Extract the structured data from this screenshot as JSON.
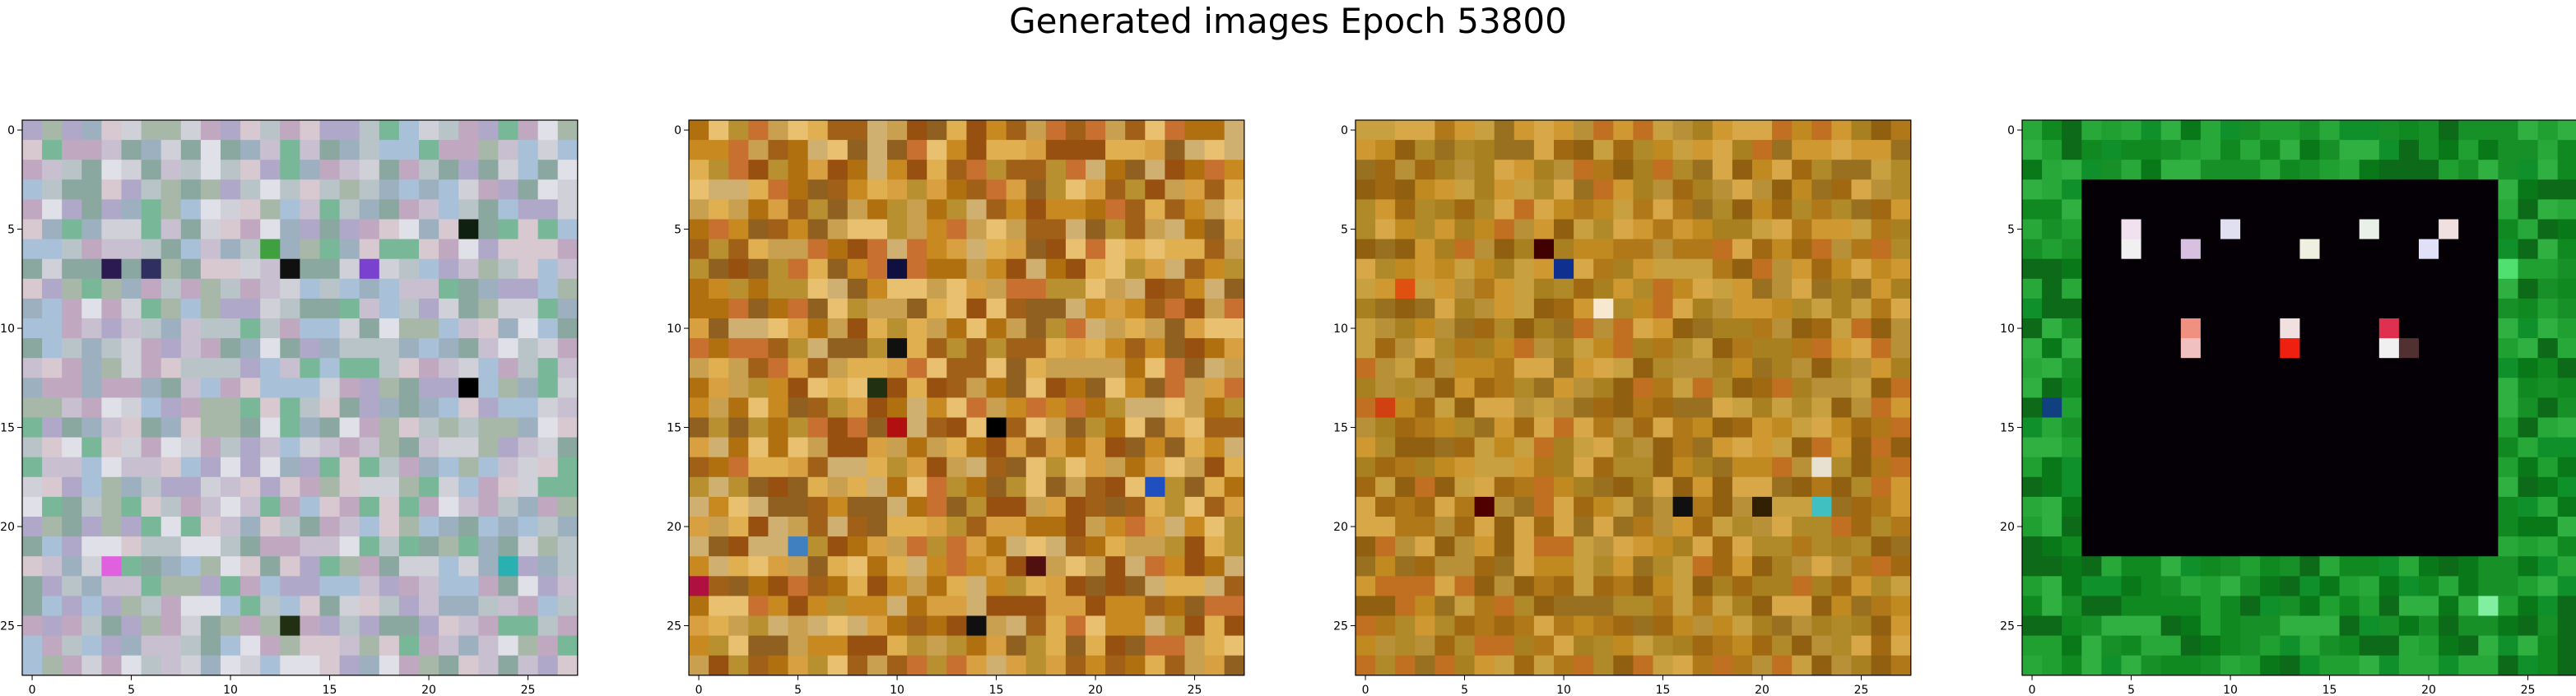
{
  "title": "Generated images Epoch 53800",
  "chart_data": [
    {
      "type": "heatmap",
      "title": "",
      "xlabel": "",
      "ylabel": "",
      "size": 28,
      "xticks": [
        0,
        5,
        10,
        15,
        20,
        25
      ],
      "yticks": [
        0,
        5,
        10,
        15,
        20,
        25
      ],
      "xlim": [
        -0.5,
        27.5
      ],
      "ylim": [
        27.5,
        -0.5
      ],
      "palette": [
        "#b8c4c8",
        "#c8c0d0",
        "#a8b8a8",
        "#d0d0d8",
        "#9cb0c0",
        "#c0a8c0",
        "#e0e0e8",
        "#8aa8a0",
        "#b0a8c8",
        "#d8c8d0",
        "#78b898",
        "#a8c0d8"
      ],
      "hot_pixels": [
        {
          "x": 4,
          "y": 7,
          "color": "#2a1a50"
        },
        {
          "x": 6,
          "y": 7,
          "color": "#303060"
        },
        {
          "x": 13,
          "y": 7,
          "color": "#101010"
        },
        {
          "x": 17,
          "y": 7,
          "color": "#7a40d0"
        },
        {
          "x": 22,
          "y": 5,
          "color": "#102010"
        },
        {
          "x": 22,
          "y": 13,
          "color": "#000000"
        },
        {
          "x": 13,
          "y": 25,
          "color": "#203010"
        },
        {
          "x": 12,
          "y": 6,
          "color": "#40a040"
        },
        {
          "x": 24,
          "y": 22,
          "color": "#2ab0b0"
        },
        {
          "x": 4,
          "y": 22,
          "color": "#e060e0"
        }
      ],
      "border": null
    },
    {
      "type": "heatmap",
      "title": "",
      "xlabel": "",
      "ylabel": "",
      "size": 28,
      "xticks": [
        0,
        5,
        10,
        15,
        20,
        25
      ],
      "yticks": [
        0,
        5,
        10,
        15,
        20,
        25
      ],
      "xlim": [
        -0.5,
        27.5
      ],
      "ylim": [
        27.5,
        -0.5
      ],
      "palette": [
        "#c88a20",
        "#b07010",
        "#d8a040",
        "#a06018",
        "#e0b050",
        "#906020",
        "#c87030",
        "#d0b070",
        "#b89030",
        "#e8c070",
        "#985010",
        "#c8a050"
      ],
      "hot_pixels": [
        {
          "x": 10,
          "y": 7,
          "color": "#101040"
        },
        {
          "x": 10,
          "y": 11,
          "color": "#101010"
        },
        {
          "x": 15,
          "y": 15,
          "color": "#000000"
        },
        {
          "x": 23,
          "y": 18,
          "color": "#2050c0"
        },
        {
          "x": 14,
          "y": 25,
          "color": "#101010"
        },
        {
          "x": 9,
          "y": 13,
          "color": "#203010"
        },
        {
          "x": 10,
          "y": 15,
          "color": "#b01010"
        },
        {
          "x": 5,
          "y": 21,
          "color": "#4080c0"
        },
        {
          "x": 0,
          "y": 23,
          "color": "#b01040"
        },
        {
          "x": 17,
          "y": 22,
          "color": "#501010"
        }
      ],
      "border": null
    },
    {
      "type": "heatmap",
      "title": "",
      "xlabel": "",
      "ylabel": "",
      "size": 28,
      "xticks": [
        0,
        5,
        10,
        15,
        20,
        25
      ],
      "yticks": [
        0,
        5,
        10,
        15,
        20,
        25
      ],
      "xlim": [
        -0.5,
        27.5
      ],
      "ylim": [
        27.5,
        -0.5
      ],
      "palette": [
        "#b07818",
        "#c08a20",
        "#a06810",
        "#d09830",
        "#987020",
        "#c8a040",
        "#b08a28",
        "#906010",
        "#d8a848",
        "#a88020",
        "#c07020",
        "#b89038"
      ],
      "hot_pixels": [
        {
          "x": 10,
          "y": 7,
          "color": "#103090"
        },
        {
          "x": 9,
          "y": 6,
          "color": "#400000"
        },
        {
          "x": 16,
          "y": 19,
          "color": "#101010"
        },
        {
          "x": 23,
          "y": 19,
          "color": "#40c0c0"
        },
        {
          "x": 6,
          "y": 19,
          "color": "#500000"
        },
        {
          "x": 20,
          "y": 19,
          "color": "#302000"
        },
        {
          "x": 12,
          "y": 9,
          "color": "#f8e8d0"
        },
        {
          "x": 2,
          "y": 8,
          "color": "#e05010"
        },
        {
          "x": 23,
          "y": 17,
          "color": "#e8e0d0"
        },
        {
          "x": 1,
          "y": 14,
          "color": "#d04010"
        }
      ],
      "border": null
    },
    {
      "type": "heatmap",
      "title": "",
      "xlabel": "",
      "ylabel": "",
      "size": 28,
      "xticks": [
        0,
        5,
        10,
        15,
        20,
        25
      ],
      "yticks": [
        0,
        5,
        10,
        15,
        20,
        25
      ],
      "xlim": [
        -0.5,
        27.5
      ],
      "ylim": [
        27.5,
        -0.5
      ],
      "palette": [
        "#108a20",
        "#20a030",
        "#087818",
        "#30b040",
        "#10902a",
        "#0c6a18",
        "#28a838",
        "#189028"
      ],
      "hot_pixels": [
        {
          "x": 5,
          "y": 5,
          "color": "#f0e0f0"
        },
        {
          "x": 5,
          "y": 6,
          "color": "#f0f0f0"
        },
        {
          "x": 8,
          "y": 6,
          "color": "#d8c0e0"
        },
        {
          "x": 10,
          "y": 5,
          "color": "#e0e0f0"
        },
        {
          "x": 14,
          "y": 6,
          "color": "#f0f0e0"
        },
        {
          "x": 17,
          "y": 5,
          "color": "#e8f0e8"
        },
        {
          "x": 20,
          "y": 6,
          "color": "#e0e0f8"
        },
        {
          "x": 21,
          "y": 5,
          "color": "#f0e0e0"
        },
        {
          "x": 8,
          "y": 10,
          "color": "#f09080"
        },
        {
          "x": 8,
          "y": 11,
          "color": "#f0c0c0"
        },
        {
          "x": 13,
          "y": 10,
          "color": "#f0e0e0"
        },
        {
          "x": 13,
          "y": 11,
          "color": "#f02010"
        },
        {
          "x": 18,
          "y": 10,
          "color": "#e03050"
        },
        {
          "x": 18,
          "y": 11,
          "color": "#f0f0f0"
        },
        {
          "x": 19,
          "y": 11,
          "color": "#503030"
        },
        {
          "x": 24,
          "y": 7,
          "color": "#50e070"
        },
        {
          "x": 23,
          "y": 24,
          "color": "#80f0a0"
        },
        {
          "x": 1,
          "y": 14,
          "color": "#104080"
        }
      ],
      "border": {
        "rows": [
          3,
          21
        ],
        "cols": [
          3,
          23
        ],
        "inside": "#050005"
      }
    }
  ]
}
